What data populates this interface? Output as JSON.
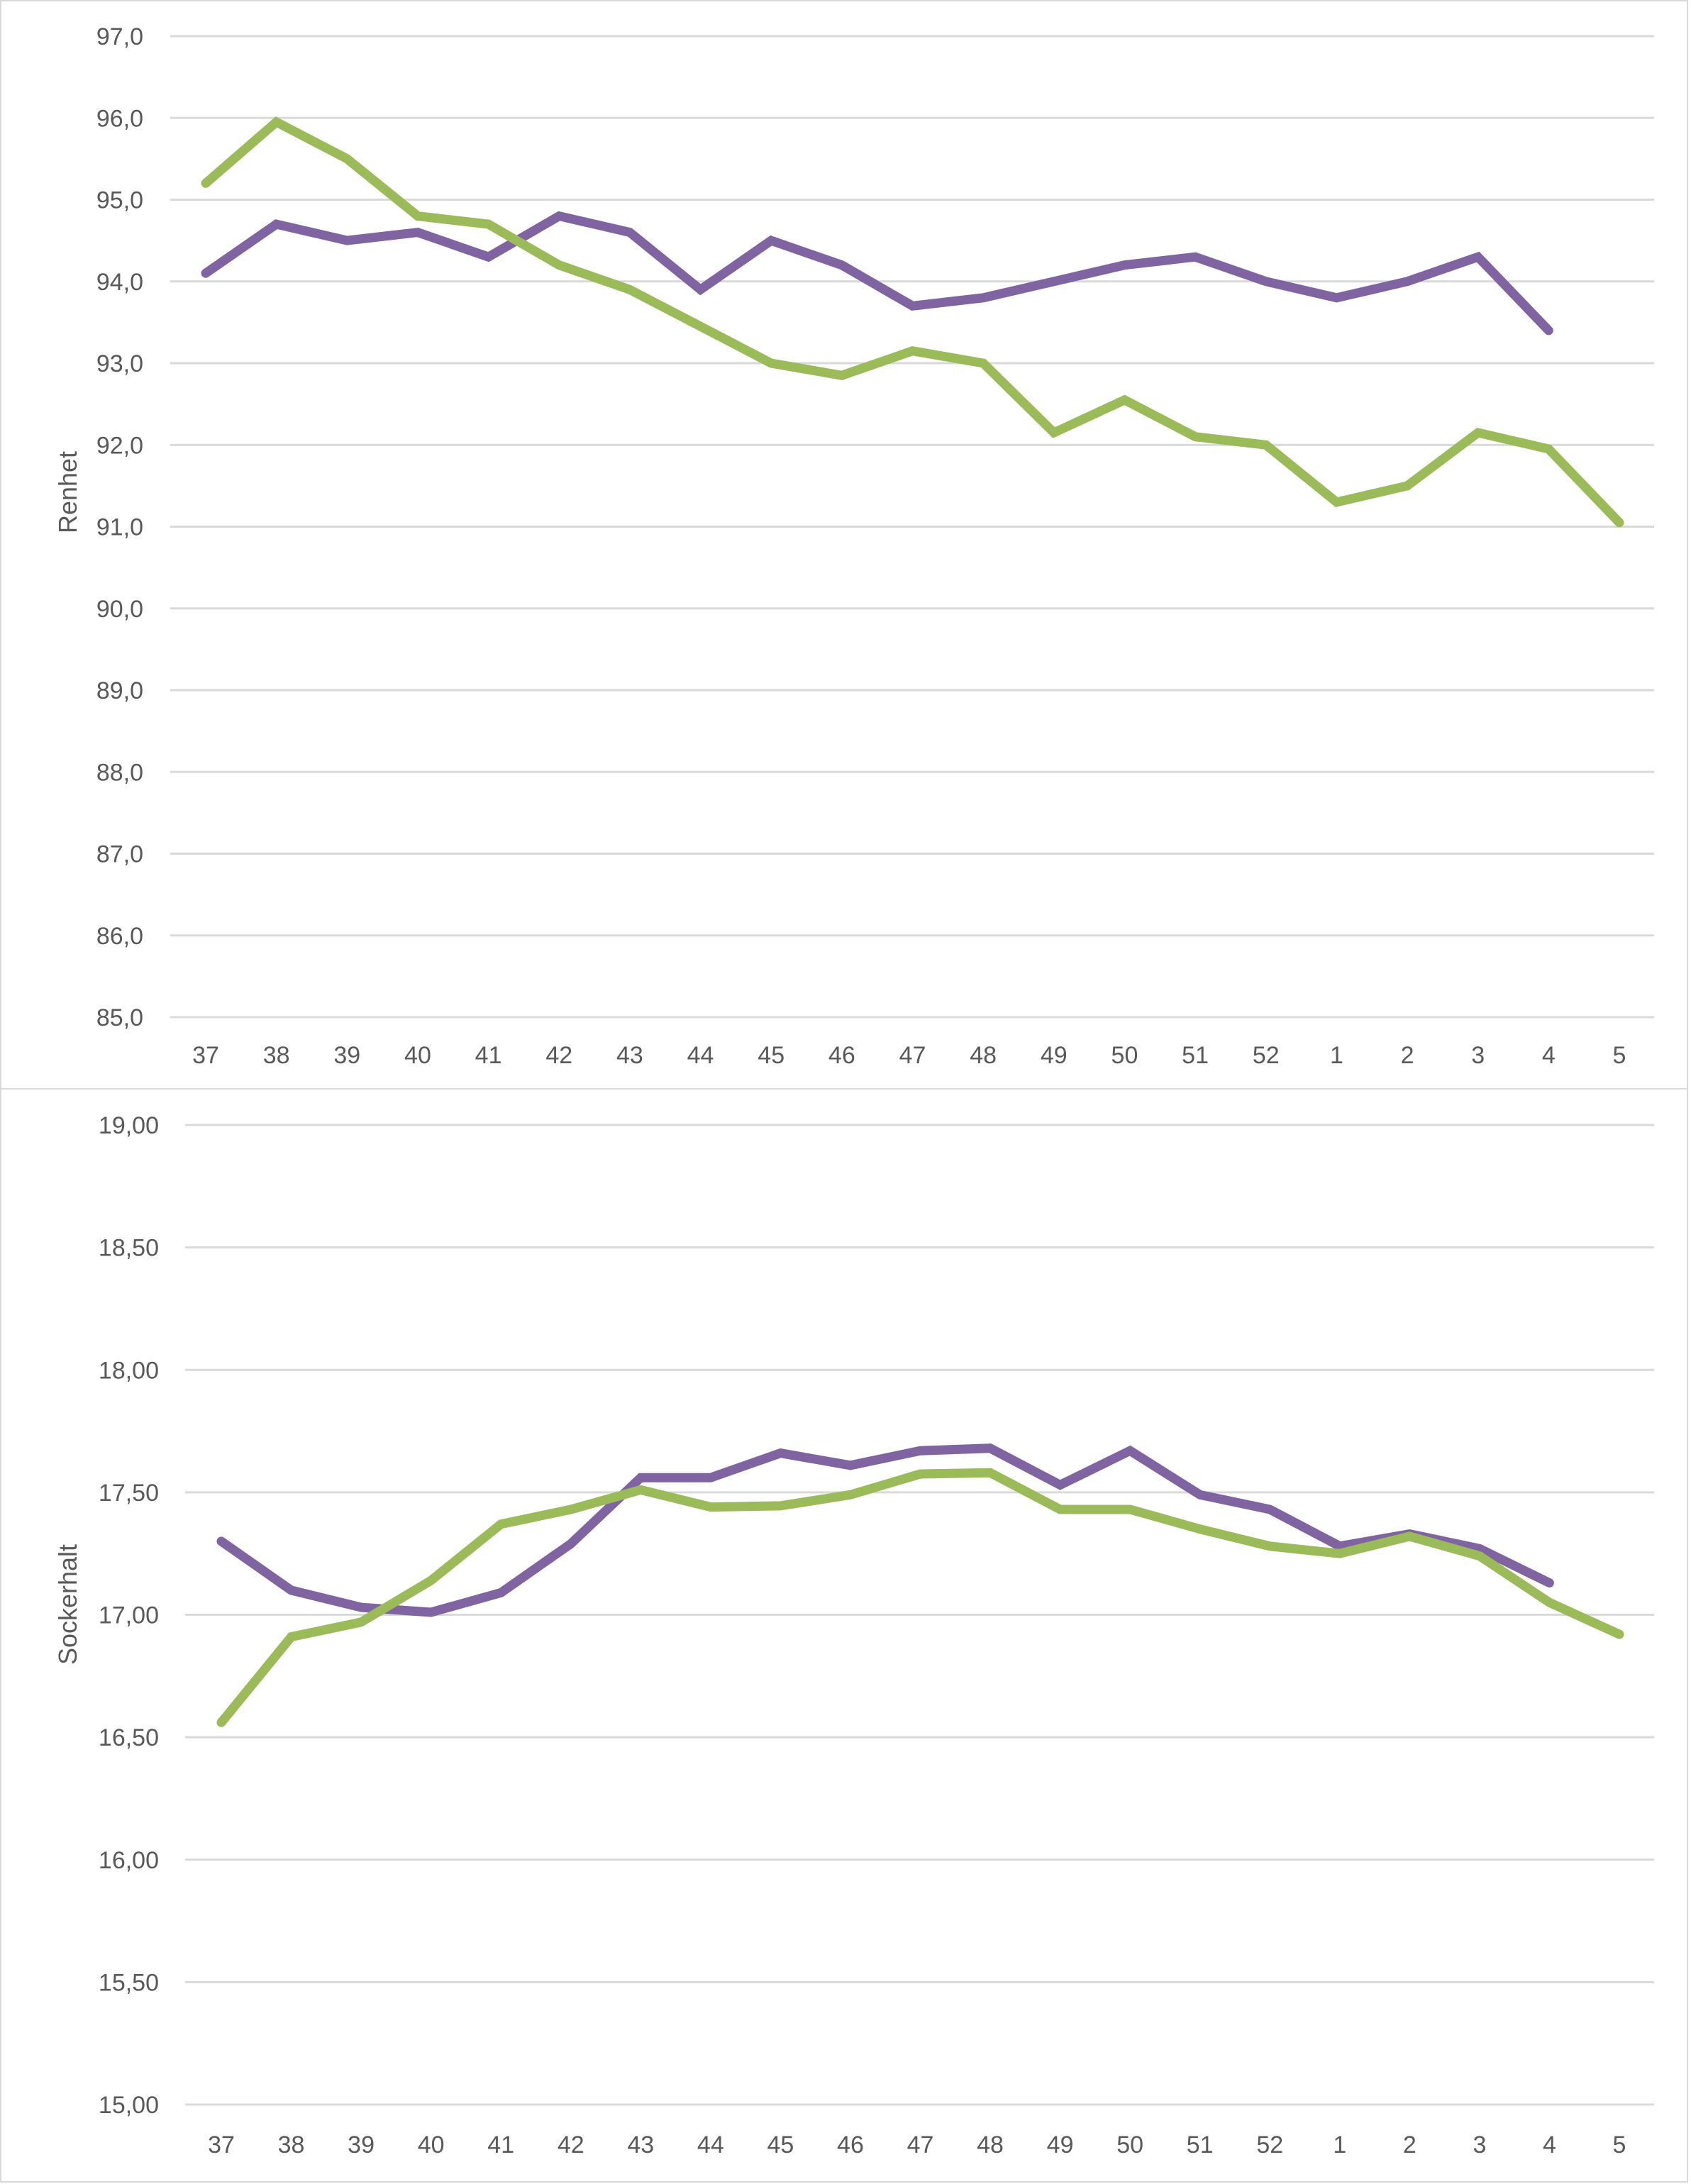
{
  "chart_data": [
    {
      "type": "line",
      "title": "",
      "xlabel": "",
      "ylabel": "Renhet",
      "ylim": [
        85.0,
        97.0
      ],
      "ytick_step": 1.0,
      "ytick_labels": [
        "85,0",
        "86,0",
        "87,0",
        "88,0",
        "89,0",
        "90,0",
        "91,0",
        "92,0",
        "93,0",
        "94,0",
        "95,0",
        "96,0",
        "97,0"
      ],
      "grid": true,
      "legend": "none",
      "categories": [
        "37",
        "38",
        "39",
        "40",
        "41",
        "42",
        "43",
        "44",
        "45",
        "46",
        "47",
        "48",
        "49",
        "50",
        "51",
        "52",
        "1",
        "2",
        "3",
        "4",
        "5"
      ],
      "series": [
        {
          "name": "purple-series",
          "color": "#8064a2",
          "values": [
            94.1,
            94.7,
            94.5,
            94.6,
            94.3,
            94.8,
            94.6,
            93.9,
            94.5,
            94.2,
            93.7,
            93.8,
            94.0,
            94.2,
            94.3,
            94.0,
            93.8,
            94.0,
            94.3,
            93.4,
            null
          ]
        },
        {
          "name": "green-series",
          "color": "#9bbb59",
          "values": [
            95.2,
            95.95,
            95.5,
            94.8,
            94.7,
            94.2,
            93.9,
            93.45,
            93.0,
            92.85,
            93.15,
            93.0,
            92.15,
            92.55,
            92.1,
            92.0,
            91.3,
            91.5,
            92.15,
            91.95,
            91.05
          ]
        }
      ]
    },
    {
      "type": "line",
      "title": "",
      "xlabel": "",
      "ylabel": "Sockerhalt",
      "ylim": [
        15.0,
        19.0
      ],
      "ytick_step": 0.5,
      "ytick_labels": [
        "15,00",
        "15,50",
        "16,00",
        "16,50",
        "17,00",
        "17,50",
        "18,00",
        "18,50",
        "19,00"
      ],
      "grid": true,
      "legend": "none",
      "categories": [
        "37",
        "38",
        "39",
        "40",
        "41",
        "42",
        "43",
        "44",
        "45",
        "46",
        "47",
        "48",
        "49",
        "50",
        "51",
        "52",
        "1",
        "2",
        "3",
        "4",
        "5"
      ],
      "series": [
        {
          "name": "purple-series",
          "color": "#8064a2",
          "values": [
            17.3,
            17.1,
            17.03,
            17.01,
            17.09,
            17.29,
            17.56,
            17.56,
            17.66,
            17.61,
            17.67,
            17.68,
            17.53,
            17.67,
            17.49,
            17.43,
            17.28,
            17.33,
            17.27,
            17.13,
            null
          ]
        },
        {
          "name": "green-series",
          "color": "#9bbb59",
          "values": [
            16.56,
            16.91,
            16.97,
            17.14,
            17.37,
            17.43,
            17.51,
            17.44,
            17.445,
            17.49,
            17.575,
            17.58,
            17.43,
            17.43,
            17.35,
            17.28,
            17.25,
            17.32,
            17.24,
            17.05,
            16.92
          ]
        }
      ]
    }
  ]
}
